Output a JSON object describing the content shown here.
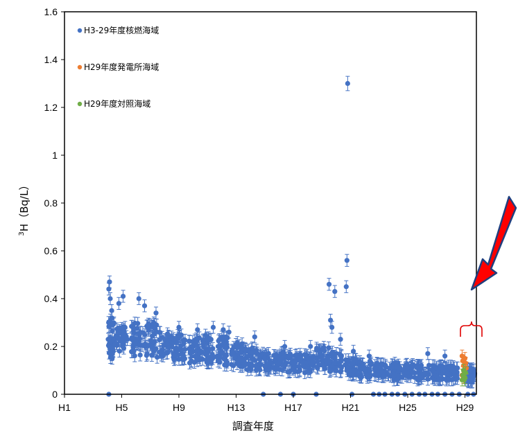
{
  "chart_data": {
    "type": "scatter",
    "title": "",
    "xlabel": "調査年度",
    "ylabel_sup": "3",
    "ylabel": "H（Bq/L）",
    "ylim": [
      0,
      1.6
    ],
    "yticks": [
      "0",
      "0.2",
      "0.4",
      "0.6",
      "0.8",
      "1",
      "1.2",
      "1.4",
      "1.6"
    ],
    "xlim": [
      1,
      29.8
    ],
    "xticks": [
      {
        "x": 1,
        "label": "H1"
      },
      {
        "x": 5,
        "label": "H5"
      },
      {
        "x": 9,
        "label": "H9"
      },
      {
        "x": 13,
        "label": "H13"
      },
      {
        "x": 17,
        "label": "H17"
      },
      {
        "x": 21,
        "label": "H21"
      },
      {
        "x": 25,
        "label": "H25"
      },
      {
        "x": 29,
        "label": "H29"
      }
    ],
    "legend_position": "top-left",
    "series": [
      {
        "name": "H3-29年度核燃海域",
        "color": "#4472C4",
        "points": [
          [
            4.1,
            0.44
          ],
          [
            4.15,
            0.47
          ],
          [
            4.2,
            0.4
          ],
          [
            4.3,
            0.35
          ],
          [
            4.2,
            0.18
          ],
          [
            4.8,
            0.38
          ],
          [
            5.1,
            0.41
          ],
          [
            6.2,
            0.4
          ],
          [
            6.6,
            0.37
          ],
          [
            7.4,
            0.34
          ],
          [
            9.0,
            0.28
          ],
          [
            10.3,
            0.27
          ],
          [
            11.4,
            0.28
          ],
          [
            12.1,
            0.27
          ],
          [
            12.5,
            0.26
          ],
          [
            14.3,
            0.24
          ],
          [
            16.4,
            0.2
          ],
          [
            18.2,
            0.2
          ],
          [
            19.5,
            0.46
          ],
          [
            19.6,
            0.31
          ],
          [
            19.7,
            0.28
          ],
          [
            19.9,
            0.43
          ],
          [
            20.3,
            0.23
          ],
          [
            20.8,
            1.3
          ],
          [
            20.75,
            0.56
          ],
          [
            20.7,
            0.45
          ],
          [
            21.2,
            0.18
          ],
          [
            22.3,
            0.16
          ],
          [
            24.1,
            0.13
          ],
          [
            26.4,
            0.17
          ],
          [
            27.6,
            0.16
          ],
          [
            28.2,
            0.11
          ],
          [
            29.4,
            0.1
          ]
        ],
        "bands": [
          [
            4.0,
            4.5,
            0.15,
            0.32
          ],
          [
            4.6,
            5.4,
            0.18,
            0.28
          ],
          [
            5.6,
            6.5,
            0.16,
            0.3
          ],
          [
            6.6,
            7.5,
            0.15,
            0.3
          ],
          [
            7.6,
            8.5,
            0.16,
            0.26
          ],
          [
            8.6,
            9.5,
            0.14,
            0.25
          ],
          [
            9.6,
            10.5,
            0.13,
            0.24
          ],
          [
            10.6,
            11.4,
            0.13,
            0.25
          ],
          [
            11.6,
            12.4,
            0.12,
            0.24
          ],
          [
            12.6,
            13.5,
            0.11,
            0.22
          ],
          [
            13.6,
            14.5,
            0.1,
            0.2
          ],
          [
            14.6,
            15.5,
            0.1,
            0.18
          ],
          [
            15.6,
            16.5,
            0.1,
            0.18
          ],
          [
            16.6,
            17.5,
            0.09,
            0.17
          ],
          [
            17.6,
            18.5,
            0.09,
            0.17
          ],
          [
            18.6,
            19.5,
            0.1,
            0.2
          ],
          [
            19.5,
            20.4,
            0.09,
            0.18
          ],
          [
            20.6,
            21.5,
            0.08,
            0.15
          ],
          [
            21.6,
            22.5,
            0.07,
            0.14
          ],
          [
            22.6,
            23.5,
            0.07,
            0.13
          ],
          [
            23.6,
            24.5,
            0.06,
            0.13
          ],
          [
            24.6,
            25.5,
            0.07,
            0.13
          ],
          [
            25.6,
            26.5,
            0.06,
            0.13
          ],
          [
            26.6,
            27.5,
            0.06,
            0.12
          ],
          [
            27.6,
            28.5,
            0.06,
            0.12
          ],
          [
            29.0,
            29.7,
            0.05,
            0.11
          ]
        ],
        "zeros": [
          4.1,
          14.9,
          16.1,
          17.0,
          18.6,
          21.1,
          22.6,
          23.0,
          23.4,
          23.9,
          24.3,
          24.8,
          25.3,
          25.8,
          26.2,
          26.7,
          27.1,
          27.6,
          28.1,
          28.6,
          29.2,
          29.6
        ]
      },
      {
        "name": "H29年度発電所海域",
        "color": "#ED7D31",
        "points": [
          [
            28.8,
            0.16
          ],
          [
            28.85,
            0.14
          ],
          [
            28.9,
            0.12
          ],
          [
            28.95,
            0.1
          ],
          [
            29.0,
            0.15
          ],
          [
            28.8,
            0.08
          ],
          [
            29.05,
            0.13
          ],
          [
            29.1,
            0.11
          ],
          [
            28.9,
            0.07
          ],
          [
            29.0,
            0.09
          ]
        ]
      },
      {
        "name": "H29年度対照海域",
        "color": "#70AD47",
        "points": [
          [
            28.85,
            0.08
          ],
          [
            28.95,
            0.06
          ],
          [
            29.0,
            0.07
          ],
          [
            28.9,
            0.1
          ],
          [
            29.05,
            0.09
          ],
          [
            28.8,
            0.06
          ]
        ]
      }
    ]
  }
}
